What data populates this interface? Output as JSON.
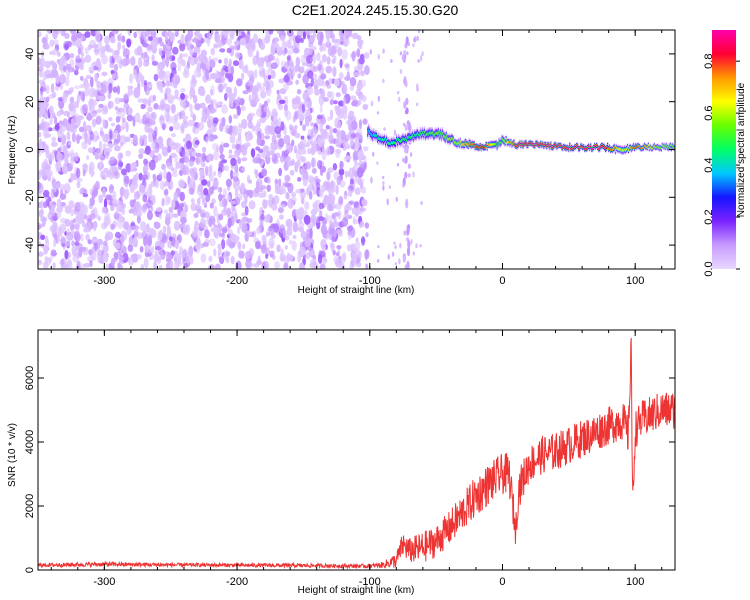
{
  "title": "C2E1.2024.245.15.30.G20",
  "colorbar": {
    "label": "Normalized spectral amplitude",
    "ticks": [
      0.0,
      0.2,
      0.4,
      0.6,
      0.8
    ],
    "tick_labels": [
      "0.0",
      "0.2",
      "0.4",
      "0.6",
      "0.8"
    ],
    "range": [
      0,
      0.92
    ],
    "colors": [
      "#e8d8ff",
      "#c79bff",
      "#7b22ff",
      "#1515ff",
      "#00c8ff",
      "#00ff66",
      "#66ff00",
      "#ffff00",
      "#ff9900",
      "#ff0033",
      "#ff00aa"
    ]
  },
  "chart_data": [
    {
      "type": "heatmap",
      "xlabel": "Height of straight line (km)",
      "ylabel": "Frequency (Hz)",
      "xlim": [
        -350,
        130
      ],
      "ylim": [
        -50,
        50
      ],
      "xticks": [
        -300,
        -200,
        -100,
        0,
        100
      ],
      "xtick_labels": [
        "-300",
        "-200",
        "-100",
        "0",
        "100"
      ],
      "yticks": [
        -40,
        -20,
        0,
        20,
        40
      ],
      "ytick_labels": [
        "-40",
        "-20",
        "0",
        "20",
        "40"
      ],
      "noise_region_x": [
        -350,
        -102
      ],
      "noise_level": 0.1,
      "signal_track": {
        "x": [
          -102,
          -95,
          -85,
          -75,
          -65,
          -55,
          -45,
          -35,
          -25,
          -15,
          -5,
          0,
          10,
          25,
          50,
          75,
          90,
          100,
          115,
          130
        ],
        "freq": [
          8,
          5,
          3,
          4,
          6,
          7,
          6,
          3,
          2,
          1,
          2,
          4,
          2,
          2,
          1,
          1,
          0,
          1,
          1,
          1
        ],
        "amplitude": [
          0.35,
          0.4,
          0.42,
          0.45,
          0.45,
          0.5,
          0.55,
          0.6,
          0.75,
          0.85,
          0.5,
          0.55,
          0.85,
          0.88,
          0.9,
          0.9,
          0.6,
          0.8,
          0.6,
          0.55
        ],
        "width_hz": [
          6,
          5,
          5,
          5,
          5,
          5,
          5,
          4,
          4,
          3,
          4,
          4,
          3,
          3,
          3,
          3,
          4,
          3,
          3,
          3
        ]
      },
      "vertical_streak_x": -72
    },
    {
      "type": "line",
      "xlabel": "Height of straight line (km)",
      "ylabel": "SNR (10 * v/v)",
      "xlim": [
        -350,
        130
      ],
      "ylim": [
        0,
        7500
      ],
      "xticks": [
        -300,
        -200,
        -100,
        0,
        100
      ],
      "xtick_labels": [
        "-300",
        "-200",
        "-100",
        "0",
        "100"
      ],
      "yticks": [
        0,
        2000,
        4000,
        6000
      ],
      "ytick_labels": [
        "0",
        "2000",
        "4000",
        "6000"
      ],
      "color": "#ee3333",
      "series": [
        {
          "x": [
            -350,
            -300,
            -250,
            -200,
            -150,
            -100,
            -90,
            -80,
            -75,
            -70,
            -60,
            -50,
            -40,
            -30,
            -20,
            -10,
            0,
            5,
            10,
            12,
            20,
            30,
            40,
            50,
            60,
            70,
            80,
            90,
            95,
            97,
            98,
            100,
            105,
            110,
            120,
            130
          ],
          "y": [
            150,
            180,
            160,
            150,
            140,
            120,
            160,
            300,
            800,
            600,
            700,
            900,
            1300,
            1800,
            2300,
            2700,
            3000,
            3000,
            1200,
            2500,
            3300,
            3600,
            3700,
            3900,
            4100,
            4300,
            4500,
            4700,
            4200,
            7400,
            1800,
            4400,
            4700,
            4800,
            5000,
            5000
          ],
          "noise_amplitude": [
            60,
            70,
            60,
            60,
            60,
            60,
            100,
            250,
            400,
            400,
            500,
            500,
            550,
            600,
            650,
            650,
            650,
            650,
            500,
            600,
            600,
            600,
            600,
            600,
            600,
            600,
            600,
            650,
            650,
            650,
            650,
            600,
            600,
            600,
            600,
            600
          ]
        }
      ]
    }
  ]
}
